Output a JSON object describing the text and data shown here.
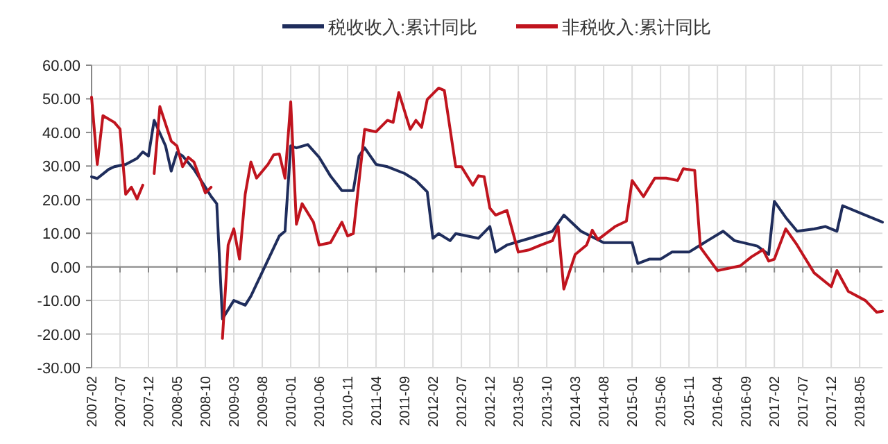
{
  "chart_data": {
    "type": "line",
    "legend": "top",
    "grid": true,
    "xlim": [
      "2007-02",
      "2018-09"
    ],
    "xticks": [
      "2007-02",
      "2007-07",
      "2007-12",
      "2008-05",
      "2008-10",
      "2009-03",
      "2009-08",
      "2010-01",
      "2010-06",
      "2010-11",
      "2011-04",
      "2011-09",
      "2012-02",
      "2012-07",
      "2012-12",
      "2013-05",
      "2013-10",
      "2014-03",
      "2014-08",
      "2015-01",
      "2015-06",
      "2015-11",
      "2016-04",
      "2016-09",
      "2017-02",
      "2017-07",
      "2017-12",
      "2018-05"
    ],
    "ylim": [
      -30,
      60
    ],
    "yticks": [
      {
        "value": -30,
        "label": "-30.00"
      },
      {
        "value": -20,
        "label": "-20.00"
      },
      {
        "value": -10,
        "label": "-10.00"
      },
      {
        "value": 0,
        "label": "0.00"
      },
      {
        "value": 10,
        "label": "10.00"
      },
      {
        "value": 20,
        "label": "20.00"
      },
      {
        "value": 30,
        "label": "30.00"
      },
      {
        "value": 40,
        "label": "40.00"
      },
      {
        "value": 50,
        "label": "50.00"
      },
      {
        "value": 60,
        "label": "60.00"
      }
    ],
    "series": [
      {
        "name": "税收收入:累计同比",
        "color": "#1f2d5c",
        "x": [
          "2007-02",
          "2007-03",
          "2007-05",
          "2007-06",
          "2007-08",
          "2007-10",
          "2007-11",
          "2007-12",
          "2008-01",
          "2008-03",
          "2008-04",
          "2008-05",
          "2008-06",
          "2008-08",
          "2008-10",
          "2008-11",
          "2008-12",
          "2009-01",
          "2009-03",
          "2009-05",
          "2009-06",
          "2009-11",
          "2009-12",
          "2010-01",
          "2010-02",
          "2010-04",
          "2010-06",
          "2010-08",
          "2010-10",
          "2010-12",
          "2011-01",
          "2011-02",
          "2011-04",
          "2011-06",
          "2011-09",
          "2011-11",
          "2012-01",
          "2012-02",
          "2012-03",
          "2012-05",
          "2012-06",
          "2012-10",
          "2012-12",
          "2013-01",
          "2013-03",
          "2013-07",
          "2013-11",
          "2014-01",
          "2014-04",
          "2014-08",
          "2015-01",
          "2015-02",
          "2015-04",
          "2015-06",
          "2015-08",
          "2015-11",
          "2016-01",
          "2016-05",
          "2016-07",
          "2016-11",
          "2017-01",
          "2017-02",
          "2017-04",
          "2017-06",
          "2017-09",
          "2017-11",
          "2018-01",
          "2018-02",
          "2018-06",
          "2018-09"
        ],
        "values": [
          26.8,
          26.3,
          29,
          29.8,
          30.5,
          32.3,
          34.2,
          33,
          43.6,
          36,
          28.5,
          34,
          33,
          29,
          23.7,
          21,
          18.8,
          -15.5,
          -10,
          -11.4,
          -8.7,
          9.2,
          10.6,
          36,
          35.4,
          36.4,
          32.6,
          27,
          22.7,
          22.7,
          33,
          35.4,
          30.5,
          29.8,
          27.8,
          25.7,
          22.3,
          8.5,
          9.9,
          7.8,
          9.9,
          8.5,
          12,
          4.4,
          6.5,
          8.5,
          10.6,
          15.4,
          10.6,
          7.2,
          7.2,
          1,
          2.3,
          2.3,
          4.4,
          4.4,
          6.5,
          10.6,
          7.8,
          6.2,
          3.7,
          19.5,
          14.7,
          10.6,
          11.3,
          12,
          10.6,
          18.2,
          15.4,
          13.3
        ]
      },
      {
        "name": "非税收入:累计同比",
        "color": "#c0141e",
        "x": [
          "2007-02",
          "2007-03",
          "2007-04",
          "2007-06",
          "2007-07",
          "2007-08",
          "2007-09",
          "2007-10",
          "2007-11",
          "2007-12",
          "2008-01",
          "2008-02",
          "2008-04",
          "2008-05",
          "2008-06",
          "2008-07",
          "2008-08",
          "2008-10",
          "2008-11",
          "2008-12",
          "2009-01",
          "2009-02",
          "2009-03",
          "2009-04",
          "2009-05",
          "2009-06",
          "2009-07",
          "2009-09",
          "2009-10",
          "2009-11",
          "2009-12",
          "2010-01",
          "2010-02",
          "2010-03",
          "2010-05",
          "2010-06",
          "2010-08",
          "2010-10",
          "2010-11",
          "2010-12",
          "2011-02",
          "2011-04",
          "2011-06",
          "2011-07",
          "2011-08",
          "2011-10",
          "2011-11",
          "2011-12",
          "2012-01",
          "2012-03",
          "2012-04",
          "2012-06",
          "2012-07",
          "2012-09",
          "2012-10",
          "2012-11",
          "2012-12",
          "2013-01",
          "2013-03",
          "2013-05",
          "2013-07",
          "2013-09",
          "2013-11",
          "2013-12",
          "2014-01",
          "2014-03",
          "2014-05",
          "2014-06",
          "2014-07",
          "2014-10",
          "2014-12",
          "2015-01",
          "2015-03",
          "2015-05",
          "2015-07",
          "2015-09",
          "2015-10",
          "2015-12",
          "2016-01",
          "2016-04",
          "2016-08",
          "2016-10",
          "2016-12",
          "2017-01",
          "2017-02",
          "2017-04",
          "2017-06",
          "2017-07",
          "2017-09",
          "2017-12",
          "2018-01",
          "2018-03",
          "2018-06",
          "2018-08",
          "2018-09"
        ],
        "values": [
          50.5,
          30.5,
          45,
          43,
          41,
          21.6,
          23.7,
          20.2,
          24.3,
          null,
          27.8,
          47.7,
          37.4,
          36,
          29.8,
          32.6,
          31.2,
          22,
          23.7,
          null,
          -21.3,
          6.5,
          11.3,
          2.3,
          21.6,
          31.2,
          26.4,
          30.5,
          33.3,
          33.6,
          26.4,
          49.1,
          12.7,
          18.8,
          13.3,
          6.5,
          7.2,
          13.3,
          9.2,
          9.9,
          40.9,
          40.2,
          43.6,
          43,
          51.9,
          40.9,
          43.6,
          41.5,
          49.8,
          53.2,
          52.5,
          29.8,
          29.8,
          24.3,
          27.1,
          26.8,
          17.5,
          15.4,
          16.8,
          4.4,
          5.1,
          6.5,
          7.8,
          12,
          -6.6,
          3.7,
          6.5,
          10.9,
          8.1,
          12,
          13.6,
          25.7,
          20.9,
          26.4,
          26.4,
          25.7,
          29.2,
          28.7,
          5.8,
          -1.1,
          0.3,
          3,
          5.1,
          1.7,
          2.3,
          11.3,
          6.5,
          3.7,
          -1.8,
          -5.9,
          -1.1,
          -7.3,
          -10,
          -13.5,
          -13.2
        ]
      }
    ]
  }
}
